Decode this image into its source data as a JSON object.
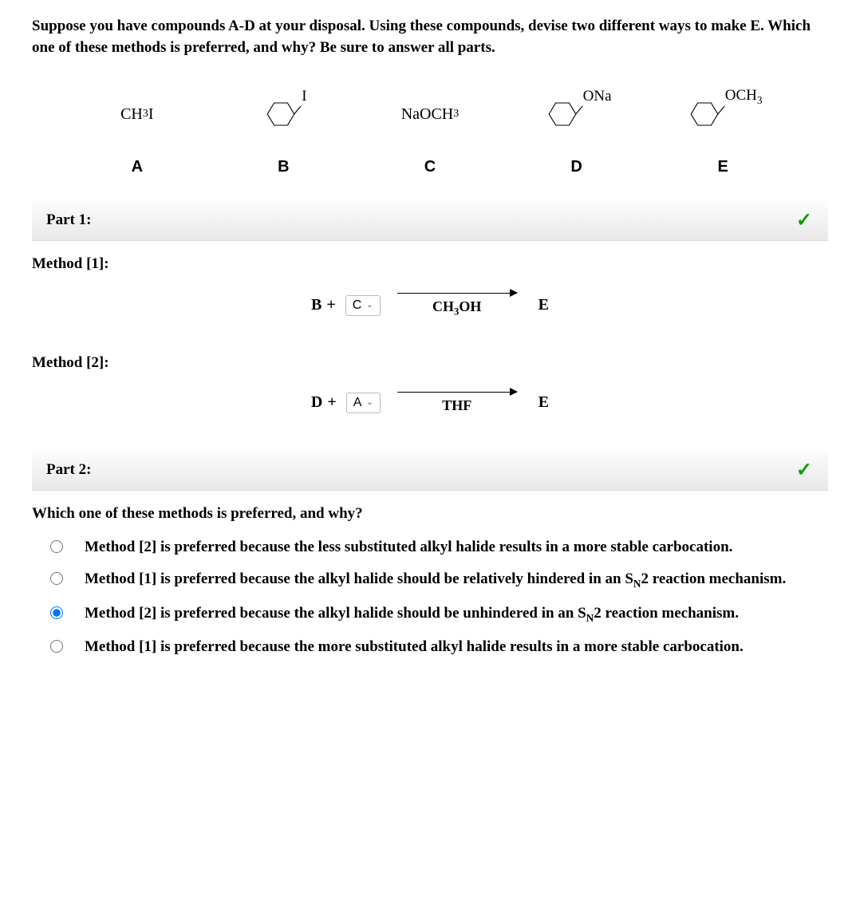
{
  "question": "Suppose you have compounds A-D at your disposal. Using these compounds, devise two different ways to make E. Which one of these methods is preferred, and why? Be sure to answer all parts.",
  "compounds": {
    "A": {
      "formula_html": "CH<sub>3</sub>I",
      "label": "A"
    },
    "B": {
      "substituent": "I",
      "label": "B"
    },
    "C": {
      "formula_html": "NaOCH<sub>3</sub>",
      "label": "C"
    },
    "D": {
      "substituent": "ONa",
      "label": "D"
    },
    "E_struct": {
      "substituent_html": "OCH<sub>3</sub>",
      "label": "E"
    }
  },
  "part1": {
    "title": "Part 1:",
    "check": "✓",
    "method1": {
      "label": "Method [1]:",
      "lhs_fixed": "B",
      "plus": "+",
      "select_value": "C",
      "solvent_html": "CH<sub>3</sub>OH",
      "product": "E"
    },
    "method2": {
      "label": "Method [2]:",
      "lhs_fixed": "D",
      "plus": "+",
      "select_value": "A",
      "solvent_html": "THF",
      "product": "E"
    }
  },
  "part2": {
    "title": "Part 2:",
    "check": "✓",
    "question": "Which one of these methods is preferred, and why?",
    "options": [
      {
        "text_html": "Method [2] is preferred because the less substituted alkyl halide results in a more stable carbocation.",
        "checked": false
      },
      {
        "text_html": "Method [1] is preferred because the alkyl halide should be relatively hindered in an S<sub>N</sub>2 reaction mechanism.",
        "checked": false
      },
      {
        "text_html": "Method [2] is preferred because the alkyl halide should be unhindered in an S<sub>N</sub>2 reaction mechanism.",
        "checked": true
      },
      {
        "text_html": "Method [1] is preferred because the more substituted alkyl halide results in a more stable carbocation.",
        "checked": false
      }
    ]
  },
  "colors": {
    "check_green": "#00a000",
    "text": "#000000",
    "header_grad_top": "#fdfdfd",
    "header_grad_bottom": "#e8e8e8"
  }
}
